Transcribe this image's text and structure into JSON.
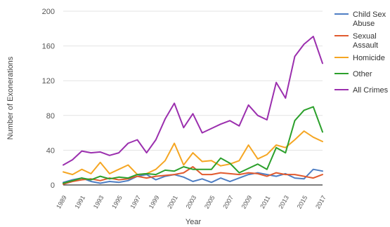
{
  "chart_data": {
    "type": "line",
    "xlabel": "Year",
    "ylabel": "Number of Exonerations",
    "ylim": [
      0,
      200
    ],
    "yticks": [
      0,
      40,
      80,
      120,
      160,
      200
    ],
    "grid": true,
    "legend_position": "right",
    "x": [
      1989,
      1990,
      1991,
      1992,
      1993,
      1994,
      1995,
      1996,
      1997,
      1998,
      1999,
      2000,
      2001,
      2002,
      2003,
      2004,
      2005,
      2006,
      2007,
      2008,
      2009,
      2010,
      2011,
      2012,
      2013,
      2014,
      2015,
      2016,
      2017
    ],
    "x_tick_labels": [
      "1989",
      "1991",
      "1993",
      "1995",
      "1997",
      "1999",
      "2001",
      "2003",
      "2005",
      "2007",
      "2009",
      "2011",
      "2013",
      "2015",
      "2017"
    ],
    "series": [
      {
        "name": "Child Sex Abuse",
        "color": "#4e7ec4",
        "values": [
          3,
          6,
          8,
          4,
          2,
          4,
          3,
          5,
          10,
          12,
          6,
          10,
          12,
          9,
          4,
          7,
          3,
          8,
          4,
          8,
          12,
          14,
          12,
          10,
          13,
          8,
          7,
          18,
          16
        ]
      },
      {
        "name": "Sexual Assault",
        "color": "#e15a2e",
        "values": [
          1,
          4,
          6,
          7,
          5,
          8,
          6,
          7,
          10,
          8,
          10,
          11,
          12,
          14,
          21,
          12,
          12,
          14,
          13,
          12,
          14,
          13,
          10,
          14,
          12,
          12,
          10,
          8,
          12
        ]
      },
      {
        "name": "Homicide",
        "color": "#f5a623",
        "values": [
          15,
          12,
          18,
          13,
          26,
          13,
          18,
          23,
          12,
          13,
          18,
          28,
          48,
          23,
          37,
          27,
          28,
          22,
          24,
          28,
          46,
          30,
          35,
          46,
          43,
          52,
          62,
          55,
          50
        ]
      },
      {
        "name": "Other",
        "color": "#2ca02c",
        "values": [
          2,
          5,
          8,
          6,
          10,
          7,
          9,
          8,
          12,
          13,
          12,
          17,
          16,
          21,
          18,
          18,
          18,
          31,
          25,
          14,
          19,
          24,
          18,
          43,
          37,
          74,
          86,
          90,
          61
        ]
      },
      {
        "name": "All Crimes",
        "color": "#9b2fae",
        "values": [
          23,
          29,
          39,
          37,
          38,
          34,
          37,
          48,
          52,
          37,
          52,
          76,
          94,
          66,
          82,
          60,
          65,
          70,
          74,
          68,
          92,
          80,
          75,
          118,
          100,
          148,
          162,
          171,
          140
        ]
      }
    ]
  }
}
